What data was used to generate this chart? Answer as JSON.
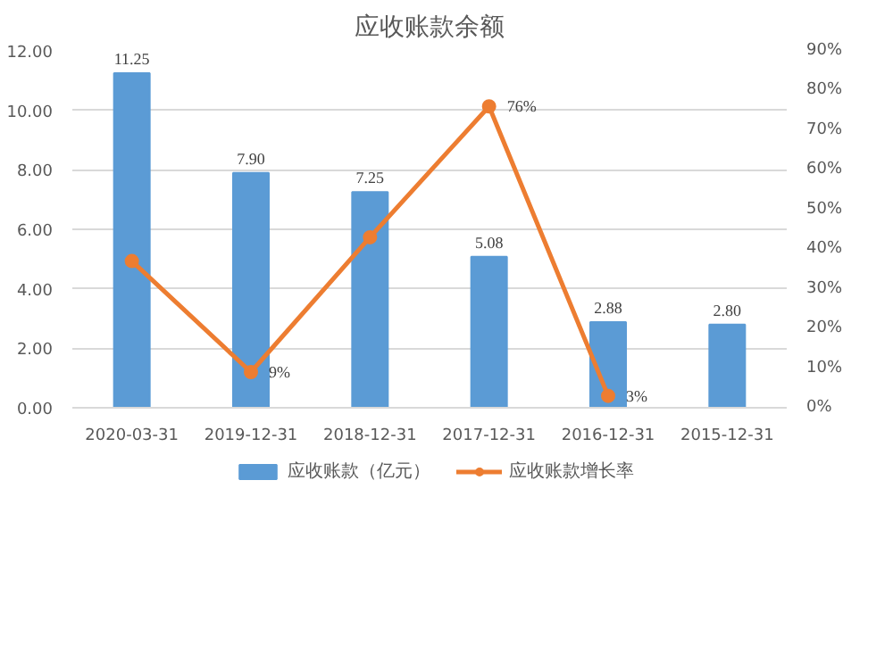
{
  "chart_data": {
    "type": "bar",
    "title": "应收账款余额",
    "categories": [
      "2020-03-31",
      "2019-12-31",
      "2018-12-31",
      "2017-12-31",
      "2016-12-31",
      "2015-12-31"
    ],
    "series": [
      {
        "name": "应收账款（亿元）",
        "color": "#5b9bd5",
        "values": [
          11.25,
          7.9,
          7.25,
          5.08,
          2.88,
          2.8
        ],
        "value_labels": [
          "11.25",
          "7.90",
          "7.25",
          "5.08",
          "2.88",
          "2.80"
        ]
      },
      {
        "name": "应收账款增长率",
        "type": "line",
        "axis": "y2",
        "color": "#ed7d31",
        "marker": "circle",
        "values": [
          37,
          9,
          43,
          76,
          3,
          null
        ],
        "value_labels": [
          null,
          "9%",
          null,
          "76%",
          "3%",
          null
        ]
      }
    ],
    "ylim": [
      0,
      12
    ],
    "yticks": [
      {
        "value": 0,
        "label": "0.00"
      },
      {
        "value": 2,
        "label": "2.00"
      },
      {
        "value": 4,
        "label": "4.00"
      },
      {
        "value": 6,
        "label": "6.00"
      },
      {
        "value": 8,
        "label": "8.00"
      },
      {
        "value": 10,
        "label": "10.00"
      },
      {
        "value": 12,
        "label": "12.00"
      }
    ],
    "y2lim": [
      0,
      90
    ],
    "y2ticks": [
      {
        "value": 0,
        "label": "0%"
      },
      {
        "value": 10,
        "label": "10%"
      },
      {
        "value": 20,
        "label": "20%"
      },
      {
        "value": 30,
        "label": "30%"
      },
      {
        "value": 40,
        "label": "40%"
      },
      {
        "value": 50,
        "label": "50%"
      },
      {
        "value": 60,
        "label": "60%"
      },
      {
        "value": 70,
        "label": "70%"
      },
      {
        "value": 80,
        "label": "80%"
      },
      {
        "value": 90,
        "label": "90%"
      }
    ],
    "grid": "y",
    "legend": "bottom"
  }
}
